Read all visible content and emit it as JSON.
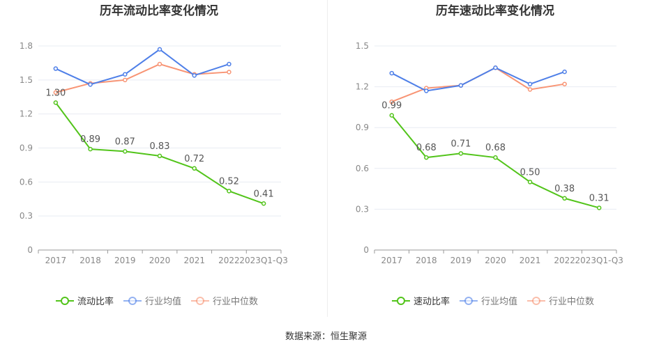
{
  "source": "数据来源：恒生聚源",
  "colors": {
    "main": "#52c41a",
    "avg": "#4e7fe8",
    "median": "#f89474"
  },
  "chart_data": [
    {
      "type": "line",
      "title": "历年流动比率变化情况",
      "ylim": [
        0,
        1.8
      ],
      "yticks": [
        "0",
        "0.3",
        "0.6",
        "0.9",
        "1.2",
        "1.5",
        "1.8"
      ],
      "categories": [
        "2017",
        "2018",
        "2019",
        "2020",
        "2021",
        "2022",
        "2023Q1-Q3"
      ],
      "series": [
        {
          "name": "流动比率",
          "values": [
            1.3,
            0.89,
            0.87,
            0.83,
            0.72,
            0.52,
            0.41
          ],
          "labels": [
            "1.30",
            "0.89",
            "0.87",
            "0.83",
            "0.72",
            "0.52",
            "0.41"
          ]
        },
        {
          "name": "行业均值",
          "values": [
            1.6,
            1.46,
            1.55,
            1.77,
            1.54,
            1.64,
            null
          ]
        },
        {
          "name": "行业中位数",
          "values": [
            1.39,
            1.47,
            1.5,
            1.64,
            1.55,
            1.57,
            null
          ]
        }
      ],
      "legend": "bottom"
    },
    {
      "type": "line",
      "title": "历年速动比率变化情况",
      "ylim": [
        0,
        1.5
      ],
      "yticks": [
        "0",
        "0.3",
        "0.6",
        "0.9",
        "1.2",
        "1.5"
      ],
      "categories": [
        "2017",
        "2018",
        "2019",
        "2020",
        "2021",
        "2022",
        "2023Q1-Q3"
      ],
      "series": [
        {
          "name": "速动比率",
          "values": [
            0.99,
            0.68,
            0.71,
            0.68,
            0.5,
            0.38,
            0.31
          ],
          "labels": [
            "0.99",
            "0.68",
            "0.71",
            "0.68",
            "0.50",
            "0.38",
            "0.31"
          ]
        },
        {
          "name": "行业均值",
          "values": [
            1.3,
            1.17,
            1.21,
            1.34,
            1.22,
            1.31,
            null
          ]
        },
        {
          "name": "行业中位数",
          "values": [
            1.09,
            1.19,
            1.21,
            1.34,
            1.18,
            1.22,
            null
          ]
        }
      ],
      "legend": "bottom"
    }
  ]
}
